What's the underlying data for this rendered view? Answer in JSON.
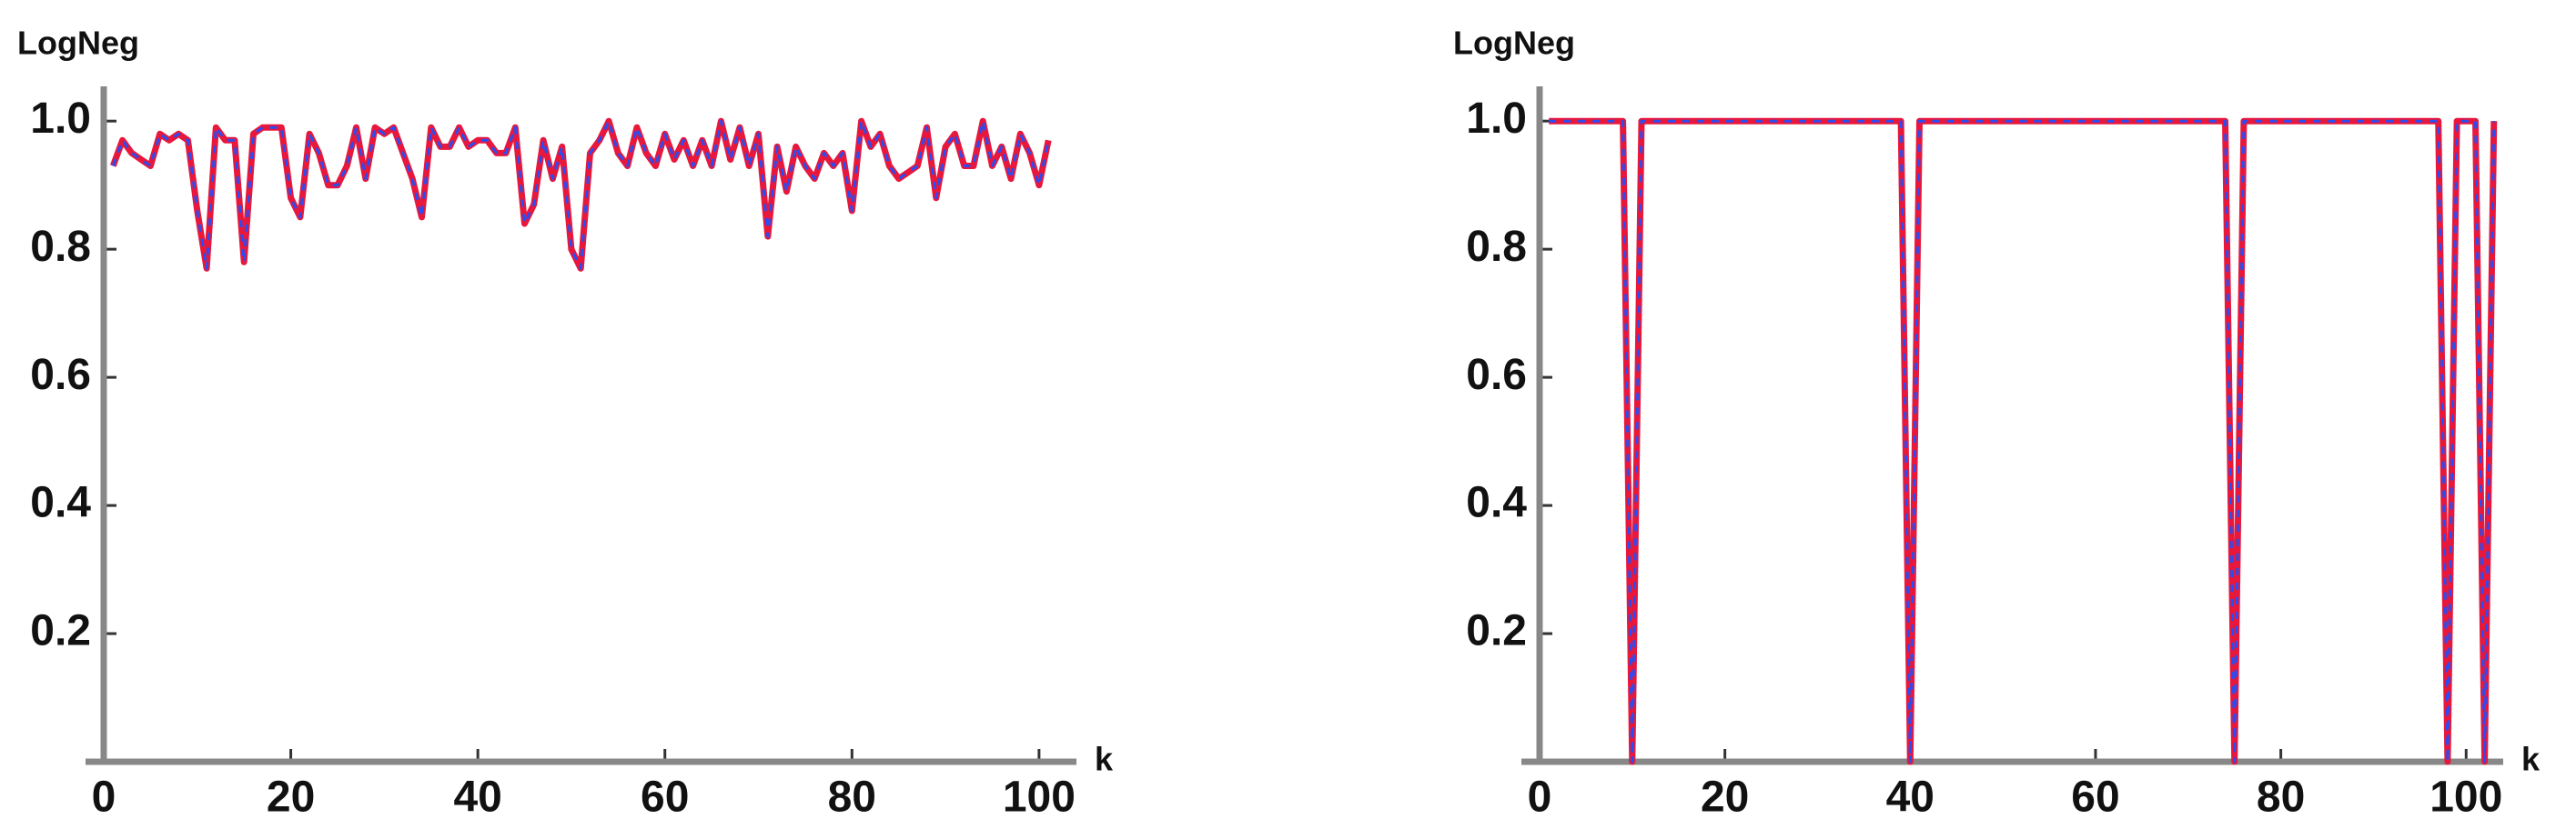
{
  "chart_data": [
    {
      "type": "line",
      "y_label": "LogNeg",
      "x_label": "k",
      "x": [
        1,
        2,
        3,
        4,
        5,
        6,
        7,
        8,
        9,
        10,
        11,
        12,
        13,
        14,
        15,
        16,
        17,
        18,
        19,
        20,
        21,
        22,
        23,
        24,
        25,
        26,
        27,
        28,
        29,
        30,
        31,
        32,
        33,
        34,
        35,
        36,
        37,
        38,
        39,
        40,
        41,
        42,
        43,
        44,
        45,
        46,
        47,
        48,
        49,
        50,
        51,
        52,
        53,
        54,
        55,
        56,
        57,
        58,
        59,
        60,
        61,
        62,
        63,
        64,
        65,
        66,
        67,
        68,
        69,
        70,
        71,
        72,
        73,
        74,
        75,
        76,
        77,
        78,
        79,
        80,
        81,
        82,
        83,
        84,
        85,
        86,
        87,
        88,
        89,
        90,
        91,
        92,
        93,
        94,
        95,
        96,
        97,
        98,
        99,
        100,
        101
      ],
      "series": [
        {
          "color": "#e8173c",
          "style": "solid",
          "values": [
            0.93,
            0.97,
            0.95,
            0.94,
            0.93,
            0.98,
            0.97,
            0.98,
            0.97,
            0.86,
            0.77,
            0.99,
            0.97,
            0.97,
            0.78,
            0.98,
            0.99,
            0.99,
            0.99,
            0.88,
            0.85,
            0.98,
            0.95,
            0.9,
            0.9,
            0.93,
            0.99,
            0.91,
            0.99,
            0.98,
            0.99,
            0.95,
            0.91,
            0.85,
            0.99,
            0.96,
            0.96,
            0.99,
            0.96,
            0.97,
            0.97,
            0.95,
            0.95,
            0.99,
            0.84,
            0.87,
            0.97,
            0.91,
            0.96,
            0.8,
            0.77,
            0.95,
            0.97,
            1.0,
            0.95,
            0.93,
            0.99,
            0.95,
            0.93,
            0.98,
            0.94,
            0.97,
            0.93,
            0.97,
            0.93,
            1.0,
            0.94,
            0.99,
            0.93,
            0.98,
            0.82,
            0.96,
            0.89,
            0.96,
            0.93,
            0.91,
            0.95,
            0.93,
            0.95,
            0.86,
            1.0,
            0.96,
            0.98,
            0.93,
            0.91,
            0.92,
            0.93,
            0.99,
            0.88,
            0.96,
            0.98,
            0.93,
            0.93,
            1.0,
            0.93,
            0.96,
            0.91,
            0.98,
            0.95,
            0.9,
            0.97
          ]
        },
        {
          "color": "#2b4cf0",
          "style": "dashed",
          "values": [
            0.93,
            0.97,
            0.95,
            0.94,
            0.93,
            0.98,
            0.97,
            0.98,
            0.97,
            0.86,
            0.77,
            0.99,
            0.97,
            0.97,
            0.78,
            0.98,
            0.99,
            0.99,
            0.99,
            0.88,
            0.85,
            0.98,
            0.95,
            0.9,
            0.9,
            0.93,
            0.99,
            0.91,
            0.99,
            0.98,
            0.99,
            0.95,
            0.91,
            0.85,
            0.99,
            0.96,
            0.96,
            0.99,
            0.96,
            0.97,
            0.97,
            0.95,
            0.95,
            0.99,
            0.84,
            0.87,
            0.97,
            0.91,
            0.96,
            0.8,
            0.77,
            0.95,
            0.97,
            1.0,
            0.95,
            0.93,
            0.99,
            0.95,
            0.93,
            0.98,
            0.94,
            0.97,
            0.93,
            0.97,
            0.93,
            1.0,
            0.94,
            0.99,
            0.93,
            0.98,
            0.82,
            0.96,
            0.89,
            0.96,
            0.93,
            0.91,
            0.95,
            0.93,
            0.95,
            0.86,
            1.0,
            0.96,
            0.98,
            0.93,
            0.91,
            0.92,
            0.93,
            0.99,
            0.88,
            0.96,
            0.98,
            0.93,
            0.93,
            1.0,
            0.93,
            0.96,
            0.91,
            0.98,
            0.95,
            0.9,
            0.97
          ]
        }
      ],
      "xlim": [
        0,
        104
      ],
      "ylim": [
        0,
        1.04
      ],
      "xticks": [
        0,
        20,
        40,
        60,
        80,
        100
      ],
      "yticks": [
        0.2,
        0.4,
        0.6,
        0.8,
        {
          "value": 1.0,
          "label": "1.0"
        }
      ]
    },
    {
      "type": "line",
      "y_label": "LogNeg",
      "x_label": "k",
      "x": [
        1,
        2,
        3,
        4,
        5,
        6,
        7,
        8,
        9,
        10,
        11,
        12,
        13,
        14,
        15,
        16,
        17,
        18,
        19,
        20,
        21,
        22,
        23,
        24,
        25,
        26,
        27,
        28,
        29,
        30,
        31,
        32,
        33,
        34,
        35,
        36,
        37,
        38,
        39,
        40,
        41,
        42,
        43,
        44,
        45,
        46,
        47,
        48,
        49,
        50,
        51,
        52,
        53,
        54,
        55,
        56,
        57,
        58,
        59,
        60,
        61,
        62,
        63,
        64,
        65,
        66,
        67,
        68,
        69,
        70,
        71,
        72,
        73,
        74,
        75,
        76,
        77,
        78,
        79,
        80,
        81,
        82,
        83,
        84,
        85,
        86,
        87,
        88,
        89,
        90,
        91,
        92,
        93,
        94,
        95,
        96,
        97,
        98,
        99,
        100,
        101,
        102,
        103
      ],
      "series": [
        {
          "color": "#e8173c",
          "style": "solid",
          "values": [
            1,
            1,
            1,
            1,
            1,
            1,
            1,
            1,
            1,
            0,
            1,
            1,
            1,
            1,
            1,
            1,
            1,
            1,
            1,
            1,
            1,
            1,
            1,
            1,
            1,
            1,
            1,
            1,
            1,
            1,
            1,
            1,
            1,
            1,
            1,
            1,
            1,
            1,
            1,
            0,
            1,
            1,
            1,
            1,
            1,
            1,
            1,
            1,
            1,
            1,
            1,
            1,
            1,
            1,
            1,
            1,
            1,
            1,
            1,
            1,
            1,
            1,
            1,
            1,
            1,
            1,
            1,
            1,
            1,
            1,
            1,
            1,
            1,
            1,
            0,
            1,
            1,
            1,
            1,
            1,
            1,
            1,
            1,
            1,
            1,
            1,
            1,
            1,
            1,
            1,
            1,
            1,
            1,
            1,
            1,
            1,
            1,
            0,
            1,
            1,
            1,
            0,
            1
          ]
        },
        {
          "color": "#2b4cf0",
          "style": "dashed",
          "values": [
            1,
            1,
            1,
            1,
            1,
            1,
            1,
            1,
            1,
            0,
            1,
            1,
            1,
            1,
            1,
            1,
            1,
            1,
            1,
            1,
            1,
            1,
            1,
            1,
            1,
            1,
            1,
            1,
            1,
            1,
            1,
            1,
            1,
            1,
            1,
            1,
            1,
            1,
            1,
            0,
            1,
            1,
            1,
            1,
            1,
            1,
            1,
            1,
            1,
            1,
            1,
            1,
            1,
            1,
            1,
            1,
            1,
            1,
            1,
            1,
            1,
            1,
            1,
            1,
            1,
            1,
            1,
            1,
            1,
            1,
            1,
            1,
            1,
            1,
            0,
            1,
            1,
            1,
            1,
            1,
            1,
            1,
            1,
            1,
            1,
            1,
            1,
            1,
            1,
            1,
            1,
            1,
            1,
            1,
            1,
            1,
            1,
            0,
            1,
            1,
            1,
            0,
            1
          ]
        }
      ],
      "xlim": [
        0,
        104
      ],
      "ylim": [
        0,
        1.04
      ],
      "xticks": [
        0,
        20,
        40,
        60,
        80,
        100
      ],
      "yticks": [
        0.2,
        0.4,
        0.6,
        0.8,
        {
          "value": 1.0,
          "label": "1.0"
        }
      ]
    }
  ]
}
